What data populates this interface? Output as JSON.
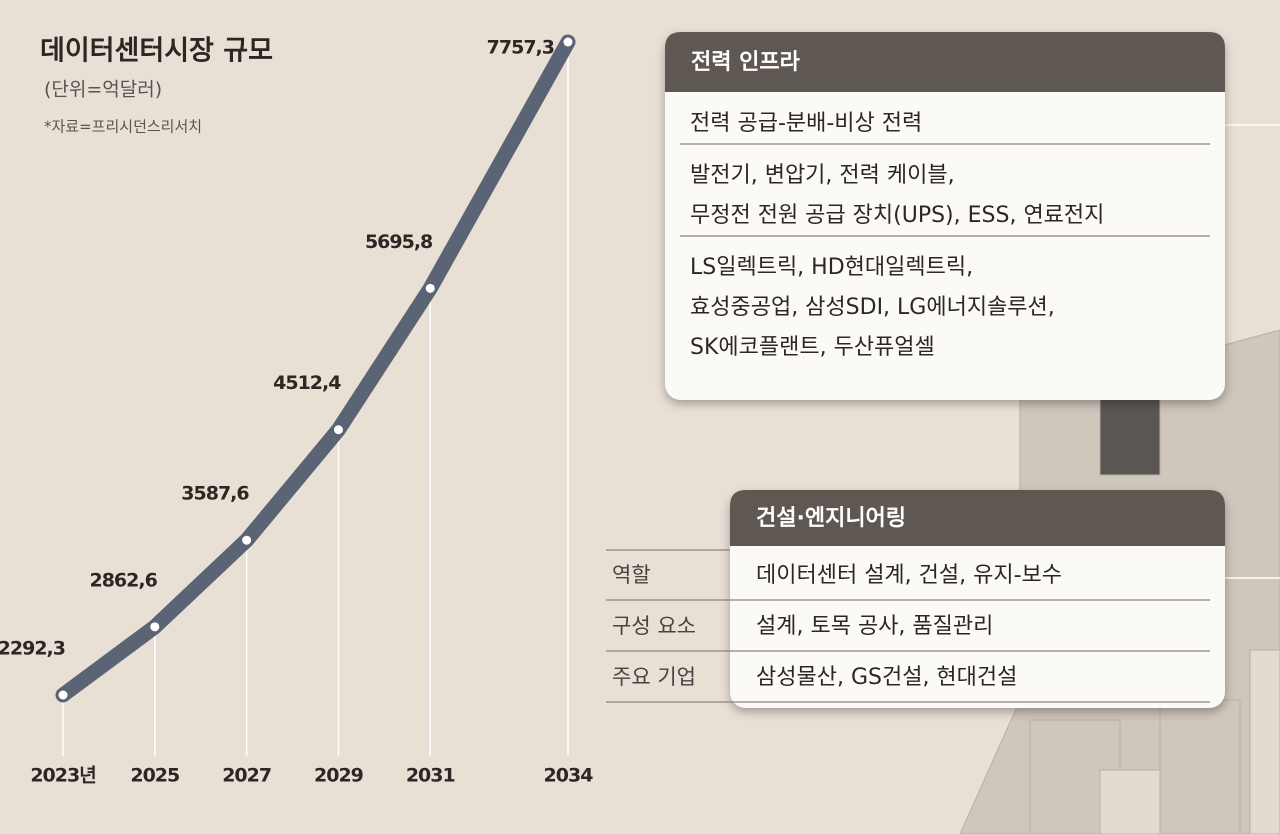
{
  "chart_data": {
    "type": "line",
    "title": "데이터센터시장 규모",
    "subtitle": "(단위=억달러)",
    "note": "*자료=프리시던스리서치",
    "x": [
      2023,
      2025,
      2027,
      2029,
      2031,
      2034
    ],
    "xticks": [
      {
        "value": 2023,
        "label": "2023년"
      },
      2025,
      2027,
      2029,
      2031,
      2034
    ],
    "values": [
      2292.3,
      2862.6,
      3587.6,
      4512.4,
      5695.8,
      7757.3
    ],
    "value_labels": [
      "2292,3",
      "2862,6",
      "3587,6",
      "4512,4",
      "5695,8",
      "7757,3"
    ],
    "color": "#5a6474"
  },
  "panels": {
    "power": {
      "title": "전력 인프라",
      "rows": [
        [
          "전력 공급-분배-비상 전력"
        ],
        [
          "발전기, 변압기, 전력 케이블,",
          "무정전 전원 공급 장치(UPS), ESS, 연료전지"
        ],
        [
          "LS일렉트릭, HD현대일렉트릭,",
          "효성중공업, 삼성SDI, LG에너지솔루션,",
          "SK에코플랜트, 두산퓨얼셀"
        ]
      ]
    },
    "construction": {
      "title": "건설·엔지니어링",
      "rows": [
        {
          "label": "역할",
          "text": "데이터센터 설계, 건설, 유지-보수"
        },
        {
          "label": "구성 요소",
          "text": "설계, 토목 공사, 품질관리"
        },
        {
          "label": "주요 기업",
          "text": "삼성물산, GS건설, 현대건설"
        }
      ]
    }
  }
}
